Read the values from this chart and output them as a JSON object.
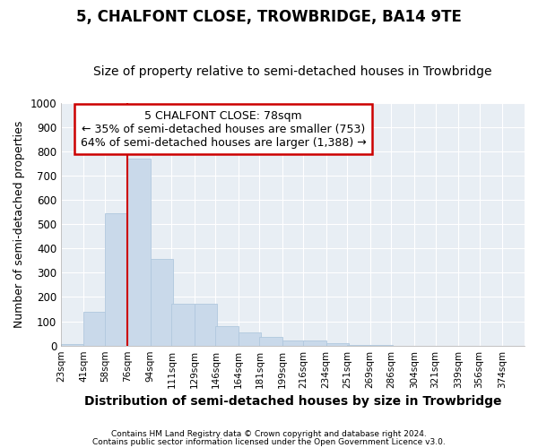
{
  "title": "5, CHALFONT CLOSE, TROWBRIDGE, BA14 9TE",
  "subtitle": "Size of property relative to semi-detached houses in Trowbridge",
  "xlabel": "Distribution of semi-detached houses by size in Trowbridge",
  "ylabel": "Number of semi-detached properties",
  "bar_color": "#c9d9ea",
  "bar_edge_color": "#b0c8de",
  "annotation_text": "5 CHALFONT CLOSE: 78sqm\n← 35% of semi-detached houses are smaller (753)\n64% of semi-detached houses are larger (1,388) →",
  "vline_x": 76,
  "vline_color": "#cc0000",
  "footer1": "Contains HM Land Registry data © Crown copyright and database right 2024.",
  "footer2": "Contains public sector information licensed under the Open Government Licence v3.0.",
  "categories": [
    "23sqm",
    "41sqm",
    "58sqm",
    "76sqm",
    "94sqm",
    "111sqm",
    "129sqm",
    "146sqm",
    "164sqm",
    "181sqm",
    "199sqm",
    "216sqm",
    "234sqm",
    "251sqm",
    "269sqm",
    "286sqm",
    "304sqm",
    "321sqm",
    "339sqm",
    "356sqm",
    "374sqm"
  ],
  "bin_edges": [
    23,
    41,
    58,
    76,
    94,
    111,
    129,
    146,
    164,
    181,
    199,
    216,
    234,
    251,
    269,
    286,
    304,
    321,
    339,
    356,
    374
  ],
  "bin_width": 18,
  "values": [
    8,
    140,
    545,
    770,
    358,
    172,
    172,
    80,
    53,
    35,
    20,
    20,
    10,
    3,
    3,
    0,
    0,
    0,
    0,
    0,
    0
  ],
  "ylim": [
    0,
    1000
  ],
  "yticks": [
    0,
    100,
    200,
    300,
    400,
    500,
    600,
    700,
    800,
    900,
    1000
  ],
  "fig_bg_color": "#ffffff",
  "plot_bg_color": "#e8eef4",
  "grid_color": "#ffffff",
  "title_fontsize": 12,
  "subtitle_fontsize": 10,
  "annotation_fontsize": 9,
  "box_color": "#ffffff",
  "box_edge_color": "#cc0000",
  "ylabel_fontsize": 9,
  "xlabel_fontsize": 10
}
